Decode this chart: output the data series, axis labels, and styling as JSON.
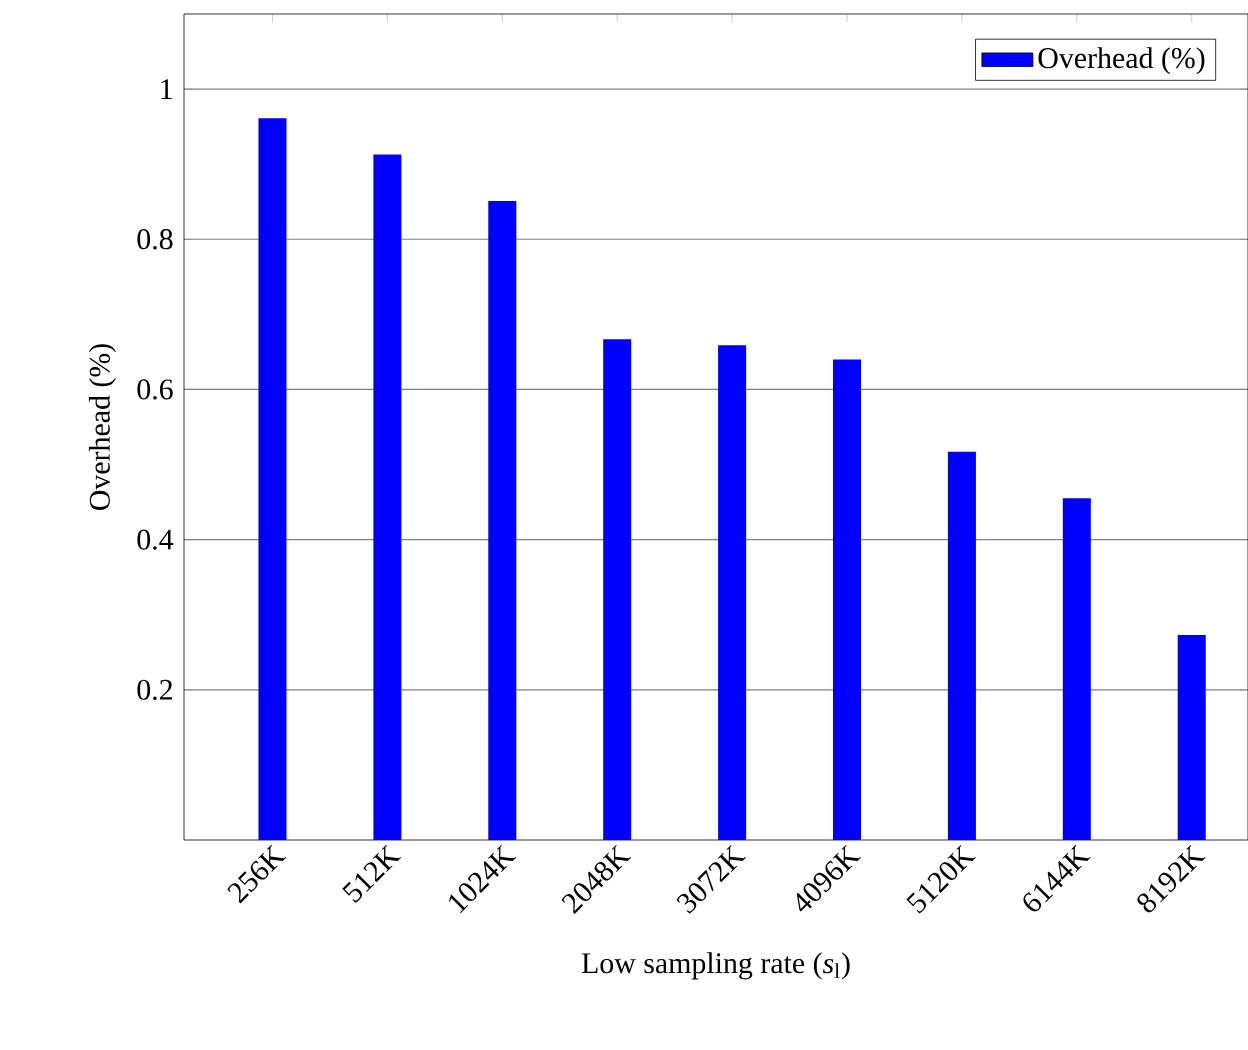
{
  "chart_data": {
    "type": "bar",
    "xlabel": "Low sampling rate (*s*$_{l}$)",
    "ylabel": "Overhead (%)",
    "categories": [
      "256K",
      "512K",
      "1024K",
      "2048K",
      "3072K",
      "4096K",
      "5120K",
      "6144K",
      "8192K"
    ],
    "series": [
      {
        "name": "Overhead (%)",
        "color": "#0000ff",
        "values": [
          0.961,
          0.913,
          0.851,
          0.667,
          0.659,
          0.64,
          0.517,
          0.455,
          0.273
        ]
      }
    ],
    "ylim": [
      0,
      1.1
    ],
    "yticks": [
      0.2,
      0.4,
      0.6,
      0.8,
      1
    ],
    "grid": "y",
    "legend": "top right"
  }
}
